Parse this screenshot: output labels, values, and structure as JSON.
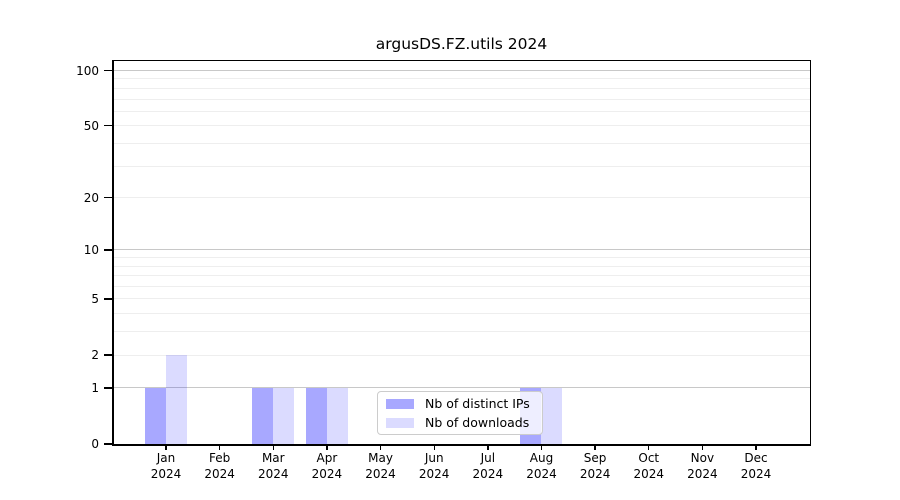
{
  "chart_data": {
    "type": "bar",
    "title": "argusDS.FZ.utils 2024",
    "categories": [
      "Jan 2024",
      "Feb 2024",
      "Mar 2024",
      "Apr 2024",
      "May 2024",
      "Jun 2024",
      "Jul 2024",
      "Aug 2024",
      "Sep 2024",
      "Oct 2024",
      "Nov 2024",
      "Dec 2024"
    ],
    "series": [
      {
        "name": "Nb of distinct IPs",
        "color": "rgba(0,0,255,0.34)",
        "values": [
          1,
          0,
          1,
          1,
          0,
          0,
          0,
          1,
          0,
          0,
          0,
          0
        ]
      },
      {
        "name": "Nb of downloads",
        "color": "rgba(0,0,255,0.14)",
        "values": [
          2,
          0,
          1,
          1,
          0,
          0,
          0,
          1,
          0,
          0,
          0,
          0
        ]
      }
    ],
    "y_axis": {
      "scale": "log1p",
      "tick_values": [
        0,
        1,
        2,
        5,
        10,
        20,
        50,
        100
      ],
      "major_gridlines": [
        1,
        10,
        100
      ],
      "minor_gridlines": [
        2,
        3,
        4,
        5,
        6,
        7,
        8,
        9,
        20,
        30,
        40,
        50,
        60,
        70,
        80,
        90
      ],
      "ylim": [
        0,
        113
      ]
    },
    "x_axis": {
      "tick_label_lines": 2,
      "year": "2024"
    },
    "legend": {
      "location": "lower center",
      "entries": [
        "Nb of distinct IPs",
        "Nb of downloads"
      ]
    },
    "colors": {
      "major_grid": "#c8c8c8",
      "minor_grid": "#eeeeee",
      "spine": "#000000",
      "background": "#ffffff"
    }
  }
}
